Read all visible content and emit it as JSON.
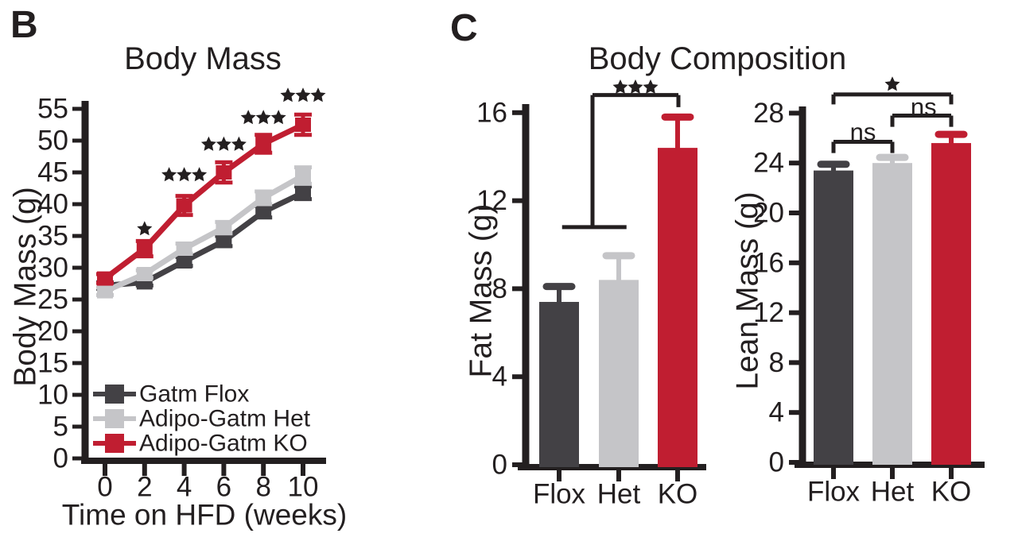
{
  "panels": {
    "b": {
      "label": "B"
    },
    "c": {
      "label": "C",
      "title": "Body Composition"
    }
  },
  "colors": {
    "text": "#231f20",
    "flox": "#434145",
    "het": "#c5c5c8",
    "ko": "#c01e31"
  },
  "chart_data": [
    {
      "id": "body_mass",
      "type": "line",
      "title": "Body Mass",
      "xlabel": "Time on HFD (weeks)",
      "ylabel": "Body Mass (g)",
      "x": [
        0,
        2,
        4,
        6,
        8,
        10
      ],
      "ylim": [
        0,
        55
      ],
      "yticks": [
        0,
        5,
        10,
        15,
        20,
        25,
        30,
        35,
        40,
        45,
        50,
        55
      ],
      "legend_position": "bottom-left-inside",
      "grid": false,
      "series": [
        {
          "name": "Gatm Flox",
          "color": "#434145",
          "values": [
            27.2,
            27.7,
            31.0,
            34.2,
            38.8,
            41.8
          ],
          "errors": [
            0.5,
            0.5,
            0.7,
            0.8,
            0.9,
            1.0
          ]
        },
        {
          "name": "Adipo-Gatm Het",
          "color": "#c5c5c8",
          "values": [
            26.3,
            29.0,
            33.0,
            36.3,
            41.0,
            44.5
          ],
          "errors": [
            0.6,
            0.6,
            0.8,
            0.9,
            1.0,
            1.3
          ]
        },
        {
          "name": "Adipo-Gatm KO",
          "color": "#c01e31",
          "values": [
            28.3,
            33.0,
            39.8,
            45.0,
            49.5,
            52.5
          ],
          "errors": [
            0.7,
            1.2,
            1.5,
            1.6,
            1.4,
            1.6
          ]
        }
      ],
      "annotations": [
        {
          "text": "*",
          "x": 2,
          "y": 36.1
        },
        {
          "text": "***",
          "x": 4,
          "y": 44.6
        },
        {
          "text": "***",
          "x": 6,
          "y": 49.4
        },
        {
          "text": "***",
          "x": 8,
          "y": 53.6
        },
        {
          "text": "***",
          "x": 10,
          "y": 57.1
        }
      ]
    },
    {
      "id": "fat_mass",
      "type": "bar",
      "ylabel": "Fat Mass (g)",
      "categories": [
        "Flox",
        "Het",
        "KO"
      ],
      "values": [
        7.4,
        8.4,
        14.4
      ],
      "errors": [
        0.7,
        1.1,
        1.4
      ],
      "bar_colors": [
        "#434145",
        "#c5c5c8",
        "#c01e31"
      ],
      "ylim": [
        0,
        16
      ],
      "yticks": [
        0,
        4,
        8,
        12,
        16
      ],
      "grid": false,
      "significance": [
        {
          "label": "***",
          "label_at": {
            "cx": 1.28,
            "y": 17.15
          },
          "segments": [
            [
              [
                0.05,
                10.8
              ],
              [
                1.13,
                10.8
              ]
            ],
            [
              [
                0.56,
                10.8
              ],
              [
                0.56,
                16.8
              ]
            ],
            [
              [
                0.56,
                16.8
              ],
              [
                2.0,
                16.8
              ]
            ],
            [
              [
                2.0,
                16.8
              ],
              [
                2.0,
                16.25
              ]
            ]
          ]
        }
      ]
    },
    {
      "id": "lean_mass",
      "type": "bar",
      "ylabel": "Lean Mass (g)",
      "categories": [
        "Flox",
        "Het",
        "KO"
      ],
      "values": [
        23.4,
        24.0,
        25.6
      ],
      "errors": [
        0.5,
        0.45,
        0.7
      ],
      "bar_colors": [
        "#434145",
        "#c5c5c8",
        "#c01e31"
      ],
      "ylim": [
        0,
        28
      ],
      "yticks": [
        0,
        4,
        8,
        12,
        16,
        20,
        24,
        28
      ],
      "grid": false,
      "significance": [
        {
          "label": "ns",
          "label_at": {
            "cx": 0.5,
            "y": 26.5
          },
          "segments": [
            [
              [
                0,
                24.8
              ],
              [
                0,
                25.7
              ]
            ],
            [
              [
                0,
                25.7
              ],
              [
                1,
                25.7
              ]
            ],
            [
              [
                1,
                25.7
              ],
              [
                1,
                24.8
              ]
            ]
          ]
        },
        {
          "label": "ns",
          "label_at": {
            "cx": 1.53,
            "y": 28.5
          },
          "segments": [
            [
              [
                1,
                26.9
              ],
              [
                1,
                27.8
              ]
            ],
            [
              [
                1,
                27.8
              ],
              [
                2,
                27.8
              ]
            ],
            [
              [
                2,
                27.8
              ],
              [
                2,
                26.9
              ]
            ]
          ]
        },
        {
          "label": "*",
          "label_at": {
            "cx": 1.0,
            "y": 30.3
          },
          "segments": [
            [
              [
                0,
                28.7
              ],
              [
                0,
                29.5
              ]
            ],
            [
              [
                0,
                29.5
              ],
              [
                2,
                29.5
              ]
            ],
            [
              [
                2,
                29.5
              ],
              [
                2,
                28.7
              ]
            ]
          ]
        }
      ]
    }
  ]
}
